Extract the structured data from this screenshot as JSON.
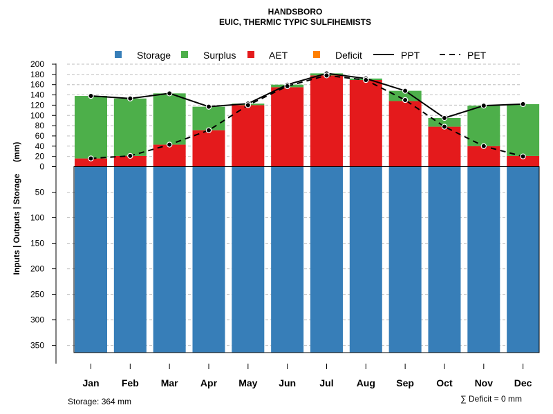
{
  "chart_data": {
    "type": "bar",
    "title": "HANDSBORO",
    "subtitle": "EUIC, THERMIC TYPIC SULFIHEMISTS",
    "ylabel": "Inputs | Outputs | Storage     (mm)",
    "categories": [
      "Jan",
      "Feb",
      "Mar",
      "Apr",
      "May",
      "Jun",
      "Jul",
      "Aug",
      "Sep",
      "Oct",
      "Nov",
      "Dec"
    ],
    "series": [
      {
        "name": "Storage",
        "color": "#377EB8",
        "values": [
          364,
          364,
          364,
          364,
          364,
          364,
          364,
          364,
          364,
          364,
          364,
          364
        ]
      },
      {
        "name": "Surplus",
        "color": "#4DAF4A",
        "values": [
          122,
          112,
          100,
          46,
          3,
          5,
          4,
          3,
          20,
          17,
          79,
          101
        ]
      },
      {
        "name": "AET",
        "color": "#E41A1C",
        "values": [
          16,
          21,
          43,
          71,
          120,
          155,
          178,
          169,
          128,
          78,
          40,
          21
        ]
      },
      {
        "name": "Deficit",
        "color": "#FF7F00",
        "values": [
          0,
          0,
          0,
          0,
          0,
          0,
          0,
          0,
          0,
          0,
          0,
          0
        ]
      },
      {
        "name": "PPT",
        "style": "solid",
        "values": [
          138,
          133,
          143,
          117,
          123,
          160,
          182,
          172,
          148,
          95,
          119,
          122
        ]
      },
      {
        "name": "PET",
        "style": "dashed",
        "values": [
          16,
          21,
          43,
          71,
          120,
          157,
          178,
          169,
          130,
          78,
          40,
          20
        ]
      }
    ],
    "upper_axis": {
      "ylim": [
        0,
        200
      ],
      "ticks": [
        0,
        20,
        40,
        60,
        80,
        100,
        120,
        140,
        160,
        180,
        200
      ]
    },
    "lower_axis": {
      "ylim": [
        0,
        364
      ],
      "ticks": [
        50,
        100,
        150,
        200,
        250,
        300,
        350
      ]
    },
    "legend": {
      "position": "top",
      "items": [
        "Storage",
        "Surplus",
        "AET",
        "Deficit",
        "PPT",
        "PET"
      ]
    },
    "footer_left": "Storage: 364 mm",
    "footer_right": "∑ Deficit = 0 mm"
  }
}
